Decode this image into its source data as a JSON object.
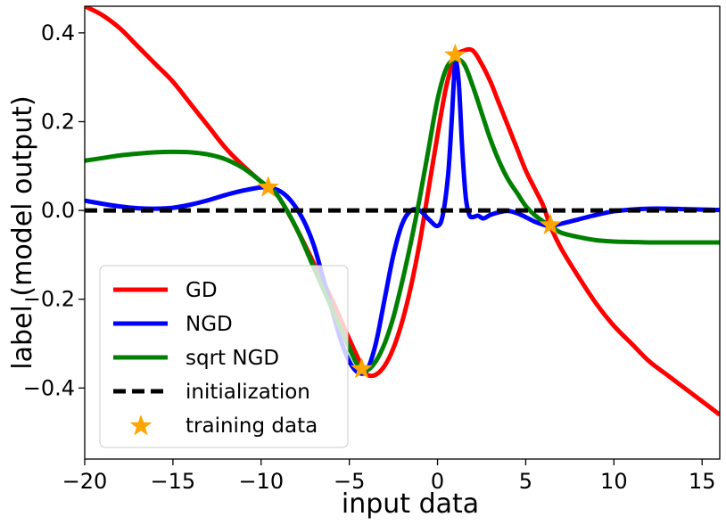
{
  "chart_data": {
    "type": "line",
    "title": "",
    "xlabel": "input data",
    "ylabel": "label (model output)",
    "xlim": [
      -20,
      16
    ],
    "ylim": [
      -0.56,
      0.46
    ],
    "xticks": [
      -20,
      -15,
      -10,
      -5,
      0,
      5,
      10,
      15
    ],
    "xtick_labels": [
      "−20",
      "−15",
      "−10",
      "−5",
      "0",
      "5",
      "10",
      "15"
    ],
    "yticks": [
      -0.4,
      -0.2,
      0.0,
      0.2,
      0.4
    ],
    "ytick_labels": [
      "−0.4",
      "−0.2",
      "0.0",
      "0.2",
      "0.4"
    ],
    "grid": false,
    "legend_position": "lower-left",
    "series": [
      {
        "name": "GD",
        "color": "#ff0000",
        "style": "solid",
        "x": [
          -20,
          -19,
          -18,
          -17,
          -16,
          -15,
          -14,
          -13,
          -12,
          -11,
          -10,
          -9.5,
          -9,
          -8,
          -7,
          -6,
          -5,
          -4.3,
          -4,
          -3.5,
          -3,
          -2.5,
          -2,
          -1.5,
          -1,
          -0.5,
          0,
          0.5,
          1,
          1.5,
          2,
          2.5,
          3,
          3.5,
          4,
          4.5,
          5,
          5.5,
          6,
          6.4,
          7,
          8,
          9,
          10,
          11,
          12,
          13,
          14,
          15,
          16
        ],
        "y": [
          0.46,
          0.44,
          0.41,
          0.37,
          0.33,
          0.29,
          0.24,
          0.19,
          0.14,
          0.1,
          0.065,
          0.05,
          0.03,
          -0.04,
          -0.12,
          -0.2,
          -0.29,
          -0.35,
          -0.37,
          -0.37,
          -0.35,
          -0.31,
          -0.25,
          -0.17,
          -0.07,
          0.05,
          0.17,
          0.28,
          0.345,
          0.36,
          0.36,
          0.33,
          0.29,
          0.24,
          0.19,
          0.14,
          0.09,
          0.05,
          0.01,
          -0.035,
          -0.085,
          -0.15,
          -0.21,
          -0.26,
          -0.3,
          -0.34,
          -0.37,
          -0.4,
          -0.43,
          -0.46
        ]
      },
      {
        "name": "NGD",
        "color": "#0000ff",
        "style": "solid",
        "x": [
          -20,
          -19,
          -18,
          -17,
          -16,
          -15,
          -14,
          -13,
          -12,
          -11,
          -10,
          -9.5,
          -9,
          -8.5,
          -8,
          -7.5,
          -7,
          -6.5,
          -6,
          -5.5,
          -5,
          -4.5,
          -4,
          -3.5,
          -3,
          -2.5,
          -2,
          -1.5,
          -1,
          -0.5,
          0,
          0.3,
          0.6,
          0.8,
          1,
          1.2,
          1.4,
          1.6,
          1.8,
          2,
          2.3,
          2.6,
          3,
          3.5,
          4,
          4.5,
          5,
          5.5,
          6,
          6.4,
          7,
          8,
          9,
          10,
          11,
          12,
          13,
          14,
          15,
          16
        ],
        "y": [
          0.022,
          0.015,
          0.009,
          0.005,
          0.004,
          0.006,
          0.013,
          0.023,
          0.035,
          0.045,
          0.052,
          0.05,
          0.045,
          0.03,
          0.005,
          -0.03,
          -0.08,
          -0.15,
          -0.22,
          -0.29,
          -0.34,
          -0.365,
          -0.36,
          -0.3,
          -0.2,
          -0.1,
          -0.03,
          0.0,
          0.0,
          -0.02,
          -0.035,
          -0.01,
          0.08,
          0.2,
          0.33,
          0.29,
          0.14,
          0.03,
          -0.01,
          -0.015,
          -0.012,
          -0.018,
          -0.01,
          -0.004,
          -0.001,
          -0.006,
          -0.015,
          -0.025,
          -0.032,
          -0.035,
          -0.03,
          -0.02,
          -0.01,
          -0.002,
          0.002,
          0.004,
          0.004,
          0.003,
          0.002,
          0.001
        ]
      },
      {
        "name": "sqrt NGD",
        "color": "#008000",
        "style": "solid",
        "x": [
          -20,
          -19,
          -18,
          -17,
          -16,
          -15,
          -14,
          -13,
          -12,
          -11,
          -10,
          -9.5,
          -9,
          -8,
          -7,
          -6,
          -5,
          -4.5,
          -4,
          -3.5,
          -3,
          -2.5,
          -2,
          -1.5,
          -1,
          -0.5,
          0,
          0.5,
          1,
          1.5,
          2,
          2.5,
          3,
          3.5,
          4,
          4.5,
          5,
          5.5,
          6,
          6.4,
          7,
          8,
          9,
          10,
          11,
          12,
          13,
          14,
          15,
          16
        ],
        "y": [
          0.112,
          0.118,
          0.124,
          0.128,
          0.131,
          0.132,
          0.131,
          0.126,
          0.115,
          0.095,
          0.065,
          0.05,
          0.03,
          -0.04,
          -0.13,
          -0.22,
          -0.31,
          -0.35,
          -0.36,
          -0.34,
          -0.3,
          -0.24,
          -0.16,
          -0.07,
          0.03,
          0.14,
          0.25,
          0.32,
          0.34,
          0.33,
          0.28,
          0.22,
          0.16,
          0.11,
          0.07,
          0.04,
          0.01,
          -0.01,
          -0.025,
          -0.035,
          -0.05,
          -0.06,
          -0.067,
          -0.07,
          -0.071,
          -0.072,
          -0.072,
          -0.072,
          -0.072,
          -0.072
        ]
      },
      {
        "name": "initialization",
        "color": "#000000",
        "style": "dashed",
        "x": [
          -20,
          16
        ],
        "y": [
          0,
          0
        ]
      }
    ],
    "training_data": {
      "name": "training data",
      "color": "#ffa500",
      "marker": "star",
      "x": [
        -9.6,
        -4.3,
        1.0,
        6.4
      ],
      "y": [
        0.052,
        -0.357,
        0.35,
        -0.033
      ]
    },
    "legend_entries": [
      "GD",
      "NGD",
      "sqrt NGD",
      "initialization",
      "training data"
    ]
  }
}
